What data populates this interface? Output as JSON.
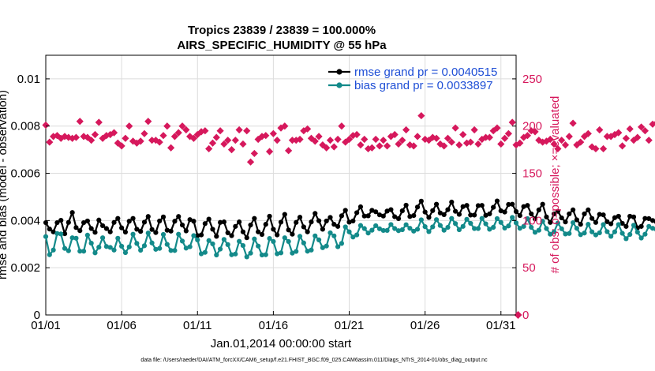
{
  "chart_data": {
    "type": "line",
    "title": "Tropics 23839 / 23839 = 100.000%",
    "subtitle": "AIRS_SPECIFIC_HUMIDITY @ 55 hPa",
    "xlabel": "Jan.01,2014 00:00:00 start",
    "ylabel": "rmse and bias (model - observation)",
    "y2label": "# of obs: o=possible; ×=evaluated",
    "footnote": "data file: /Users/raeder/DAI/ATM_forcXX/CAM6_setup/f.e21.FHIST_BGC.f09_025.CAM6assim.011/Diags_NTrS_2014-01/obs_diag_output.nc",
    "xlim": [
      1,
      32
    ],
    "ylim": [
      0,
      0.011
    ],
    "y2lim": [
      0,
      275
    ],
    "grid": true,
    "xticks": [
      {
        "value": 1,
        "label": "01/01"
      },
      {
        "value": 6,
        "label": "01/06"
      },
      {
        "value": 11,
        "label": "01/11"
      },
      {
        "value": 16,
        "label": "01/16"
      },
      {
        "value": 21,
        "label": "01/21"
      },
      {
        "value": 26,
        "label": "01/26"
      },
      {
        "value": 31,
        "label": "01/31"
      }
    ],
    "yticks": [
      {
        "value": 0,
        "label": "0"
      },
      {
        "value": 0.002,
        "label": "0.002"
      },
      {
        "value": 0.004,
        "label": "0.004"
      },
      {
        "value": 0.006,
        "label": "0.006"
      },
      {
        "value": 0.008,
        "label": "0.008"
      },
      {
        "value": 0.01,
        "label": "0.01"
      }
    ],
    "y2ticks": [
      {
        "value": 0,
        "label": "0"
      },
      {
        "value": 50,
        "label": "50"
      },
      {
        "value": 100,
        "label": "100"
      },
      {
        "value": 150,
        "label": "150"
      },
      {
        "value": 200,
        "label": "200"
      },
      {
        "value": 250,
        "label": "250"
      }
    ],
    "colors": {
      "rmse": "#000000",
      "bias": "#138a8a",
      "obs": "#d6185c",
      "legend_text": "#1f4fd6",
      "grid": "#dcdcdc"
    },
    "x_start": 1,
    "x_step": 0.25,
    "series": [
      {
        "name": "rmse",
        "legend": "rmse grand pr = 0.0040515",
        "axis": "left",
        "values": [
          0.00391,
          0.00364,
          0.00352,
          0.00391,
          0.00401,
          0.00344,
          0.00392,
          0.00434,
          0.0037,
          0.00357,
          0.00391,
          0.00398,
          0.00366,
          0.0035,
          0.00402,
          0.00378,
          0.00366,
          0.00352,
          0.00392,
          0.00409,
          0.00369,
          0.00351,
          0.00397,
          0.00409,
          0.00363,
          0.00354,
          0.00393,
          0.00417,
          0.00362,
          0.00349,
          0.00398,
          0.00415,
          0.00359,
          0.00355,
          0.00397,
          0.00417,
          0.00381,
          0.00356,
          0.00404,
          0.00397,
          0.00336,
          0.00339,
          0.00387,
          0.00406,
          0.00363,
          0.00333,
          0.00392,
          0.00394,
          0.00348,
          0.00336,
          0.00375,
          0.00394,
          0.00352,
          0.00327,
          0.00381,
          0.00409,
          0.00352,
          0.00341,
          0.00384,
          0.00418,
          0.00363,
          0.00339,
          0.00393,
          0.00426,
          0.0036,
          0.00342,
          0.00392,
          0.00414,
          0.00373,
          0.00352,
          0.00394,
          0.0043,
          0.00399,
          0.00363,
          0.00398,
          0.00413,
          0.00384,
          0.00375,
          0.0042,
          0.00443,
          0.00393,
          0.00398,
          0.00433,
          0.00458,
          0.00419,
          0.0042,
          0.00443,
          0.00437,
          0.00424,
          0.00419,
          0.0044,
          0.00446,
          0.00416,
          0.00408,
          0.00441,
          0.00465,
          0.00417,
          0.00421,
          0.00457,
          0.00482,
          0.00436,
          0.00413,
          0.00442,
          0.00469,
          0.00432,
          0.00425,
          0.00446,
          0.00478,
          0.00439,
          0.00426,
          0.00459,
          0.00464,
          0.00423,
          0.00423,
          0.00463,
          0.00464,
          0.00422,
          0.00428,
          0.00456,
          0.00483,
          0.00441,
          0.00436,
          0.00468,
          0.00469,
          0.00438,
          0.00421,
          0.00459,
          0.00464,
          0.00428,
          0.00407,
          0.00445,
          0.00469,
          0.00415,
          0.00392,
          0.00428,
          0.00439,
          0.00411,
          0.00394,
          0.00428,
          0.00445,
          0.00403,
          0.00384,
          0.00428,
          0.00445,
          0.00409,
          0.00392,
          0.00426,
          0.00424,
          0.00395,
          0.00386,
          0.00412,
          0.00418,
          0.00388,
          0.00375,
          0.00418,
          0.00415,
          0.00369,
          0.00375,
          0.00409,
          0.00408,
          0.004,
          0.00394,
          0.00402,
          0.00401
        ]
      },
      {
        "name": "bias",
        "legend": "bias grand pr = 0.0033897",
        "axis": "left",
        "values": [
          0.00332,
          0.00255,
          0.00275,
          0.00345,
          0.00343,
          0.00282,
          0.00272,
          0.00327,
          0.00325,
          0.0027,
          0.0027,
          0.00338,
          0.00304,
          0.00263,
          0.00287,
          0.00327,
          0.0029,
          0.00286,
          0.00275,
          0.00325,
          0.00291,
          0.00264,
          0.00288,
          0.00342,
          0.00303,
          0.00274,
          0.00293,
          0.00347,
          0.00305,
          0.00278,
          0.00282,
          0.00341,
          0.00299,
          0.00273,
          0.00273,
          0.00342,
          0.00313,
          0.00283,
          0.00289,
          0.00336,
          0.00318,
          0.00259,
          0.00265,
          0.00315,
          0.00301,
          0.00254,
          0.00279,
          0.0032,
          0.00298,
          0.00255,
          0.00258,
          0.00312,
          0.00294,
          0.00246,
          0.00262,
          0.00322,
          0.00292,
          0.00254,
          0.00255,
          0.00324,
          0.00311,
          0.00259,
          0.00263,
          0.00327,
          0.00311,
          0.00262,
          0.00269,
          0.00333,
          0.00305,
          0.0027,
          0.00275,
          0.00335,
          0.00318,
          0.00285,
          0.00292,
          0.00348,
          0.00335,
          0.00289,
          0.00303,
          0.00373,
          0.00352,
          0.0033,
          0.00339,
          0.00379,
          0.00366,
          0.00347,
          0.00359,
          0.00378,
          0.00365,
          0.00358,
          0.00358,
          0.00383,
          0.00366,
          0.00357,
          0.00361,
          0.00382,
          0.00367,
          0.00355,
          0.00363,
          0.00403,
          0.00374,
          0.00353,
          0.00373,
          0.00404,
          0.00379,
          0.00359,
          0.00371,
          0.00409,
          0.00387,
          0.00361,
          0.00375,
          0.00405,
          0.00388,
          0.00366,
          0.00366,
          0.00409,
          0.00386,
          0.00363,
          0.00371,
          0.00408,
          0.00392,
          0.00368,
          0.00377,
          0.00413,
          0.0039,
          0.00367,
          0.00375,
          0.00408,
          0.00371,
          0.0035,
          0.00359,
          0.00397,
          0.00366,
          0.00342,
          0.00352,
          0.00389,
          0.00365,
          0.00343,
          0.00345,
          0.00391,
          0.00367,
          0.0034,
          0.00347,
          0.00384,
          0.00352,
          0.00339,
          0.00348,
          0.00383,
          0.00353,
          0.00333,
          0.00352,
          0.00383,
          0.00346,
          0.00323,
          0.00341,
          0.0038,
          0.00351,
          0.00326,
          0.00342,
          0.00375,
          0.00367,
          0.00362,
          0.00361,
          0.00359
        ]
      },
      {
        "name": "obs evaluated",
        "axis": "right",
        "values": [
          201,
          183,
          189,
          190,
          187,
          189,
          188,
          187,
          188,
          205,
          189,
          188,
          185,
          191,
          204,
          187,
          190,
          191,
          193,
          182,
          179,
          187,
          200,
          184,
          182,
          184,
          192,
          205,
          185,
          185,
          183,
          190,
          200,
          177,
          189,
          193,
          200,
          196,
          189,
          187,
          191,
          194,
          195,
          176,
          182,
          188,
          195,
          181,
          185,
          175,
          185,
          196,
          181,
          195,
          162,
          171,
          186,
          189,
          190,
          173,
          192,
          185,
          198,
          200,
          174,
          185,
          185,
          186,
          195,
          197,
          187,
          184,
          189,
          180,
          177,
          185,
          178,
          186,
          200,
          183,
          186,
          190,
          191,
          180,
          186,
          176,
          177,
          186,
          179,
          185,
          179,
          189,
          191,
          181,
          185,
          196,
          180,
          179,
          189,
          211,
          186,
          185,
          188,
          187,
          181,
          179,
          187,
          183,
          198,
          180,
          191,
          182,
          183,
          196,
          181,
          186,
          188,
          188,
          195,
          198,
          181,
          187,
          192,
          204,
          180,
          182,
          188,
          190,
          195,
          194,
          185,
          183,
          184,
          186,
          181,
          176,
          185,
          180,
          189,
          203,
          180,
          183,
          189,
          192,
          178,
          176,
          196,
          176,
          189,
          189,
          191,
          193,
          179,
          187,
          197,
          185,
          188,
          199,
          195,
          185,
          202,
          203,
          181,
          181
        ]
      }
    ],
    "obs_possible_marker": {
      "x": 32.13,
      "value": 0
    }
  }
}
